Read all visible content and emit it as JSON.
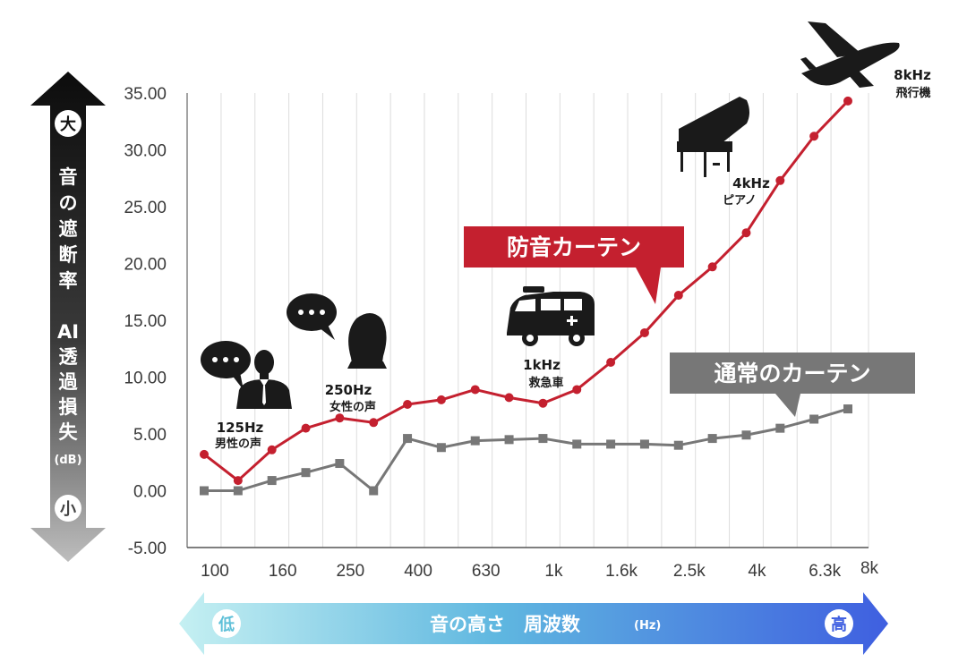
{
  "chart_data": {
    "type": "line",
    "x": [
      "100",
      "125",
      "160",
      "200",
      "250",
      "315",
      "400",
      "500",
      "630",
      "800",
      "1k",
      "1.25k",
      "1.6k",
      "2k",
      "2.5k",
      "3.15k",
      "4k",
      "5k",
      "6.3k",
      "8k"
    ],
    "x_tick_labels": [
      "100",
      "160",
      "250",
      "400",
      "630",
      "1k",
      "1.6k",
      "2.5k",
      "4k",
      "6.3k",
      "8k"
    ],
    "y_tick_labels": [
      "35.00",
      "30.00",
      "25.00",
      "20.00",
      "15.00",
      "10.00",
      "5.00",
      "0.00",
      "-5.00"
    ],
    "ylim": [
      -5,
      35
    ],
    "grid": "vertical",
    "series": [
      {
        "name": "防音カーテン",
        "color": "#c4202f",
        "marker": "circle",
        "values": [
          3.2,
          0.9,
          3.6,
          5.5,
          6.4,
          6.0,
          7.6,
          8.0,
          8.9,
          8.2,
          7.7,
          8.9,
          11.3,
          13.9,
          17.2,
          19.7,
          22.7,
          27.3,
          31.2,
          34.3
        ]
      },
      {
        "name": "通常のカーテン",
        "color": "#777777",
        "marker": "square",
        "values": [
          0.0,
          0.0,
          0.9,
          1.6,
          2.4,
          0.0,
          4.6,
          3.8,
          4.4,
          4.5,
          4.6,
          4.1,
          4.1,
          4.1,
          4.0,
          4.6,
          4.9,
          5.5,
          6.3,
          7.2
        ]
      }
    ],
    "annotations": [
      {
        "x_index": 1,
        "freq": "125Hz",
        "label": "男性の声",
        "icon": "male-speaker-icon"
      },
      {
        "x_index": 4,
        "freq": "250Hz",
        "label": "女性の声",
        "icon": "female-speaker-icon"
      },
      {
        "x_index": 10,
        "freq": "1kHz",
        "label": "救急車",
        "icon": "ambulance-icon"
      },
      {
        "x_index": 16,
        "freq": "4kHz",
        "label": "ピアノ",
        "icon": "piano-icon"
      },
      {
        "x_index": 19,
        "freq": "8kHz",
        "label": "飛行機",
        "icon": "airplane-icon"
      }
    ],
    "y_axis": {
      "title": "音の遮断率",
      "subtitle": "AI透過損失",
      "unit": "(dB)",
      "top_label": "大",
      "bottom_label": "小"
    },
    "x_axis": {
      "title": "音の高さ　周波数",
      "unit": "(Hz)",
      "left_label": "低",
      "right_label": "高"
    }
  }
}
